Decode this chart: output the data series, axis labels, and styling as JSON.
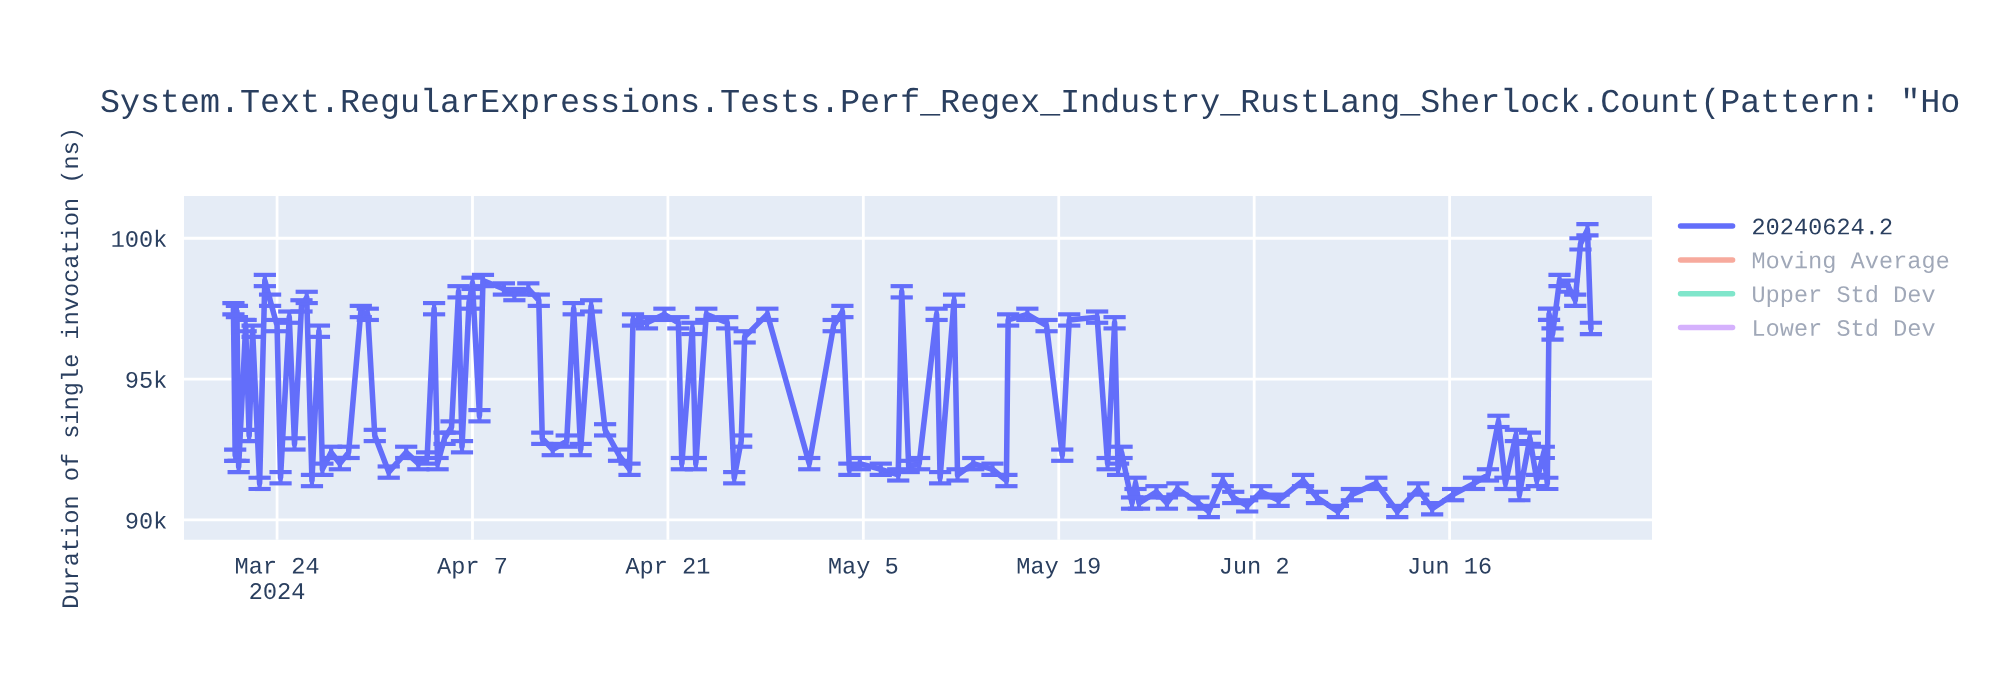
{
  "chart_data": {
    "type": "line",
    "title": "System.Text.RegularExpressions.Tests.Perf_Regex_Industry_RustLang_Sherlock.Count(Pattern: \"Ho",
    "ylabel": "Duration of single invocation (ns)",
    "xlim": [
      "2024-03-17T08:00",
      "2024-06-30T12:00"
    ],
    "xticks": [
      {
        "value": "2024-03-24",
        "label": "Mar 24\n2024"
      },
      {
        "value": "2024-04-07",
        "label": "Apr 7"
      },
      {
        "value": "2024-04-21",
        "label": "Apr 21"
      },
      {
        "value": "2024-05-05",
        "label": "May 5"
      },
      {
        "value": "2024-05-19",
        "label": "May 19"
      },
      {
        "value": "2024-06-02",
        "label": "Jun 2"
      },
      {
        "value": "2024-06-16",
        "label": "Jun 16"
      }
    ],
    "ylim": [
      89300,
      101500
    ],
    "yticks": [
      {
        "value": 90000,
        "label": "90k"
      },
      {
        "value": 95000,
        "label": "95k"
      },
      {
        "value": 100000,
        "label": "100k"
      }
    ],
    "grid": true,
    "legend": "top right",
    "marker": "none",
    "line_style": "solid",
    "x": [
      "2024-03-20T21:00",
      "2024-03-21T00:00",
      "2024-03-21T03:00",
      "2024-03-21T06:00",
      "2024-03-21T18:00",
      "2024-03-22T00:00",
      "2024-03-22T06:00",
      "2024-03-22T18:00",
      "2024-03-23T03:00",
      "2024-03-23T12:00",
      "2024-03-24T00:00",
      "2024-03-24T06:00",
      "2024-03-24T21:00",
      "2024-03-25T06:00",
      "2024-03-25T18:00",
      "2024-03-26T03:00",
      "2024-03-26T12:00",
      "2024-03-27T00:00",
      "2024-03-27T06:00",
      "2024-03-27T21:00",
      "2024-03-28T12:00",
      "2024-03-29T03:00",
      "2024-03-30T00:00",
      "2024-03-30T12:00",
      "2024-03-31T00:00",
      "2024-04-01T00:00",
      "2024-04-02T06:00",
      "2024-04-03T03:00",
      "2024-04-03T18:00",
      "2024-04-04T06:00",
      "2024-04-04T12:00",
      "2024-04-05T00:00",
      "2024-04-05T12:00",
      "2024-04-06T00:00",
      "2024-04-06T06:00",
      "2024-04-06T18:00",
      "2024-04-07T00:00",
      "2024-04-07T12:00",
      "2024-04-07T18:00",
      "2024-04-09T06:00",
      "2024-04-10T00:00",
      "2024-04-11T00:00",
      "2024-04-11T18:00",
      "2024-04-12T00:00",
      "2024-04-12T18:00",
      "2024-04-13T18:00",
      "2024-04-14T06:00",
      "2024-04-14T18:00",
      "2024-04-15T12:00",
      "2024-04-16T12:00",
      "2024-04-17T12:00",
      "2024-04-18T06:00",
      "2024-04-18T12:00",
      "2024-04-19T12:00",
      "2024-04-20T18:00",
      "2024-04-21T18:00",
      "2024-04-22T00:00",
      "2024-04-22T18:00",
      "2024-04-23T00:00",
      "2024-04-23T18:00",
      "2024-04-25T06:00",
      "2024-04-25T18:00",
      "2024-04-26T06:00",
      "2024-04-26T12:00",
      "2024-04-28T03:00",
      "2024-05-01T03:00",
      "2024-05-02T21:00",
      "2024-05-03T12:00",
      "2024-05-04T00:00",
      "2024-05-04T18:00",
      "2024-05-06T06:00",
      "2024-05-07T12:00",
      "2024-05-07T18:00",
      "2024-05-08T06:00",
      "2024-05-09T00:00",
      "2024-05-10T06:00",
      "2024-05-10T12:00",
      "2024-05-11T12:00",
      "2024-05-11T18:00",
      "2024-05-12T21:00",
      "2024-05-14T06:00",
      "2024-05-15T06:00",
      "2024-05-15T09:00",
      "2024-05-16T18:00",
      "2024-05-18T03:00",
      "2024-05-19T06:00",
      "2024-05-19T18:00",
      "2024-05-21T18:00",
      "2024-05-22T12:00",
      "2024-05-23T00:00",
      "2024-05-23T06:00",
      "2024-05-23T12:00",
      "2024-05-24T06:00",
      "2024-05-24T12:00",
      "2024-05-24T18:00",
      "2024-05-26T00:00",
      "2024-05-26T18:00",
      "2024-05-27T12:00",
      "2024-05-29T00:00",
      "2024-05-29T18:00",
      "2024-05-30T18:00",
      "2024-05-31T12:00",
      "2024-06-01T12:00",
      "2024-06-02T12:00",
      "2024-06-03T18:00",
      "2024-06-05T12:00",
      "2024-06-06T12:00",
      "2024-06-08T00:00",
      "2024-06-09T00:00",
      "2024-06-10T18:00",
      "2024-06-12T06:00",
      "2024-06-13T18:00",
      "2024-06-14T18:00",
      "2024-06-16T06:00",
      "2024-06-17T18:00",
      "2024-06-18T18:00",
      "2024-06-19T12:00",
      "2024-06-20T00:00",
      "2024-06-20T18:00",
      "2024-06-21T00:00",
      "2024-06-21T18:00",
      "2024-06-22T06:00",
      "2024-06-22T18:00",
      "2024-06-23T00:00",
      "2024-06-23T03:00",
      "2024-06-23T09:00",
      "2024-06-23T21:00",
      "2024-06-24T12:00",
      "2024-06-25T00:00",
      "2024-06-25T09:00",
      "2024-06-25T21:00",
      "2024-06-26T03:00"
    ],
    "series": [
      {
        "name": "20240624.2",
        "color": "#636efa",
        "values": [
          97500,
          92300,
          97400,
          91900,
          96900,
          93000,
          96700,
          91300,
          98500,
          97800,
          96900,
          91500,
          97200,
          92700,
          97600,
          97900,
          91400,
          96700,
          91800,
          92400,
          92000,
          92400,
          97400,
          97300,
          93000,
          91700,
          92400,
          92000,
          92200,
          97500,
          92000,
          92900,
          93300,
          98100,
          92600,
          97700,
          98400,
          93700,
          98500,
          98200,
          98000,
          98200,
          97800,
          92900,
          92500,
          92800,
          97500,
          92500,
          97600,
          93200,
          92300,
          91800,
          97100,
          97000,
          97300,
          97000,
          92000,
          96800,
          92000,
          97300,
          97000,
          91500,
          92800,
          96500,
          97300,
          92000,
          96900,
          97400,
          91800,
          92000,
          91800,
          91600,
          98100,
          91900,
          92000,
          97300,
          91500,
          97800,
          91600,
          92000,
          91800,
          91400,
          97100,
          97300,
          96900,
          92300,
          97100,
          97200,
          92000,
          97000,
          91800,
          92400,
          90600,
          91300,
          90600,
          91000,
          90600,
          91100,
          90600,
          90300,
          91400,
          90800,
          90500,
          91000,
          90700,
          91400,
          90800,
          90300,
          90900,
          91300,
          90300,
          91100,
          90400,
          90900,
          91300,
          91600,
          93500,
          91300,
          93000,
          90900,
          92900,
          91400,
          92400,
          91300,
          97300,
          96600,
          98500,
          98300,
          97800,
          99800,
          100300,
          96800
        ],
        "errors": [
          200,
          200,
          200,
          200,
          200,
          200,
          200,
          200,
          200,
          200,
          200,
          200,
          200,
          200,
          200,
          200,
          200,
          200,
          200,
          200,
          200,
          200,
          200,
          200,
          200,
          200,
          200,
          200,
          200,
          200,
          200,
          200,
          200,
          200,
          200,
          200,
          200,
          200,
          200,
          200,
          200,
          200,
          200,
          200,
          200,
          200,
          200,
          200,
          200,
          200,
          200,
          200,
          200,
          200,
          200,
          200,
          200,
          200,
          200,
          200,
          200,
          200,
          200,
          200,
          200,
          200,
          200,
          200,
          200,
          200,
          200,
          200,
          200,
          200,
          200,
          200,
          200,
          200,
          200,
          200,
          200,
          200,
          200,
          200,
          200,
          200,
          200,
          200,
          200,
          200,
          200,
          200,
          200,
          200,
          200,
          200,
          200,
          200,
          200,
          200,
          200,
          200,
          200,
          200,
          200,
          200,
          200,
          200,
          200,
          200,
          200,
          200,
          200,
          200,
          200,
          200,
          200,
          200,
          200,
          200,
          200,
          200,
          200,
          200,
          200,
          200,
          200,
          200,
          200,
          200,
          200,
          200
        ]
      },
      {
        "name": "Moving Average",
        "color": "#f7aa9d",
        "values": [
          null,
          null,
          null,
          null,
          null,
          null,
          null,
          null,
          null,
          null,
          null,
          null,
          null,
          null,
          null,
          null,
          null,
          null,
          null,
          null,
          null,
          null,
          null,
          null,
          null,
          null,
          null,
          null,
          null,
          null,
          null,
          null,
          null,
          null,
          null,
          null,
          null,
          null,
          null,
          null,
          null,
          null,
          null,
          null,
          null,
          null,
          null,
          null,
          null,
          null,
          null,
          null,
          null,
          null,
          null,
          null,
          null,
          null,
          null,
          null,
          null,
          null,
          null,
          null,
          null,
          null,
          null,
          null,
          null,
          null,
          null,
          null,
          null,
          null,
          null,
          null,
          null,
          null,
          null,
          null,
          null,
          null,
          null,
          null,
          null,
          null,
          null,
          null,
          null,
          null,
          null,
          null,
          null,
          null,
          null,
          null,
          null,
          null,
          null,
          null,
          null,
          null,
          null,
          null,
          null,
          null,
          null,
          null,
          null,
          null,
          null,
          null,
          null,
          null,
          null,
          null,
          null,
          null,
          null,
          null,
          null,
          null,
          null,
          null,
          null,
          null,
          null,
          null,
          null,
          null,
          null,
          null
        ]
      },
      {
        "name": "Upper Std Dev",
        "color": "#80e6cb",
        "values": [
          null,
          null,
          null,
          null,
          null,
          null,
          null,
          null,
          null,
          null,
          null,
          null,
          null,
          null,
          null,
          null,
          null,
          null,
          null,
          null,
          null,
          null,
          null,
          null,
          null,
          null,
          null,
          null,
          null,
          null,
          null,
          null,
          null,
          null,
          null,
          null,
          null,
          null,
          null,
          null,
          null,
          null,
          null,
          null,
          null,
          null,
          null,
          null,
          null,
          null,
          null,
          null,
          null,
          null,
          null,
          null,
          null,
          null,
          null,
          null,
          null,
          null,
          null,
          null,
          null,
          null,
          null,
          null,
          null,
          null,
          null,
          null,
          null,
          null,
          null,
          null,
          null,
          null,
          null,
          null,
          null,
          null,
          null,
          null,
          null,
          null,
          null,
          null,
          null,
          null,
          null,
          null,
          null,
          null,
          null,
          null,
          null,
          null,
          null,
          null,
          null,
          null,
          null,
          null,
          null,
          null,
          null,
          null,
          null,
          null,
          null,
          null,
          null,
          null,
          null,
          null,
          null,
          null,
          null,
          null,
          null,
          null,
          null,
          null,
          null,
          null,
          null,
          null,
          null,
          null,
          null,
          null
        ]
      },
      {
        "name": "Lower Std Dev",
        "color": "#d5b1fd",
        "values": [
          null,
          null,
          null,
          null,
          null,
          null,
          null,
          null,
          null,
          null,
          null,
          null,
          null,
          null,
          null,
          null,
          null,
          null,
          null,
          null,
          null,
          null,
          null,
          null,
          null,
          null,
          null,
          null,
          null,
          null,
          null,
          null,
          null,
          null,
          null,
          null,
          null,
          null,
          null,
          null,
          null,
          null,
          null,
          null,
          null,
          null,
          null,
          null,
          null,
          null,
          null,
          null,
          null,
          null,
          null,
          null,
          null,
          null,
          null,
          null,
          null,
          null,
          null,
          null,
          null,
          null,
          null,
          null,
          null,
          null,
          null,
          null,
          null,
          null,
          null,
          null,
          null,
          null,
          null,
          null,
          null,
          null,
          null,
          null,
          null,
          null,
          null,
          null,
          null,
          null,
          null,
          null,
          null,
          null,
          null,
          null,
          null,
          null,
          null,
          null,
          null,
          null,
          null,
          null,
          null,
          null,
          null,
          null,
          null,
          null,
          null,
          null,
          null,
          null,
          null,
          null,
          null,
          null,
          null,
          null,
          null,
          null,
          null,
          null,
          null,
          null,
          null,
          null,
          null,
          null,
          null,
          null
        ]
      }
    ]
  }
}
